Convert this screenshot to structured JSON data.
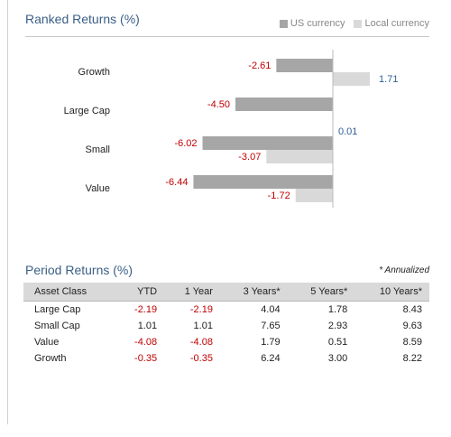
{
  "colors": {
    "us_bar": "#a6a6a6",
    "local_bar": "#d9d9d9",
    "negative": "#c00000",
    "positive": "#2e5f93",
    "title": "#3a5f85"
  },
  "ranked": {
    "title": "Ranked Returns (%)",
    "legend": [
      "US currency",
      "Local currency"
    ]
  },
  "chart_data": {
    "type": "bar",
    "orientation": "horizontal",
    "title": "Ranked Returns (%)",
    "categories": [
      "Growth",
      "Large Cap",
      "Small",
      "Value"
    ],
    "series": [
      {
        "name": "US currency",
        "values": [
          -2.61,
          -4.5,
          -6.02,
          -6.44
        ]
      },
      {
        "name": "Local currency",
        "values": [
          1.71,
          0.01,
          -3.07,
          -1.72
        ]
      }
    ],
    "value_labels": [
      [
        "-2.61",
        "-4.50",
        "-6.02",
        "-6.44"
      ],
      [
        "1.71",
        "0.01",
        "-3.07",
        "-1.72"
      ]
    ],
    "legend_position": "top-right",
    "grid": false
  },
  "periods": {
    "title": "Period Returns (%)",
    "note": "* Annualized",
    "columns": [
      "Asset Class",
      "YTD",
      "1 Year",
      "3 Years*",
      "5 Years*",
      "10 Years*"
    ],
    "rows": [
      [
        "Large Cap",
        "-2.19",
        "-2.19",
        "4.04",
        "1.78",
        "8.43"
      ],
      [
        "Small Cap",
        "1.01",
        "1.01",
        "7.65",
        "2.93",
        "9.63"
      ],
      [
        "Value",
        "-4.08",
        "-4.08",
        "1.79",
        "0.51",
        "8.59"
      ],
      [
        "Growth",
        "-0.35",
        "-0.35",
        "6.24",
        "3.00",
        "8.22"
      ]
    ]
  }
}
